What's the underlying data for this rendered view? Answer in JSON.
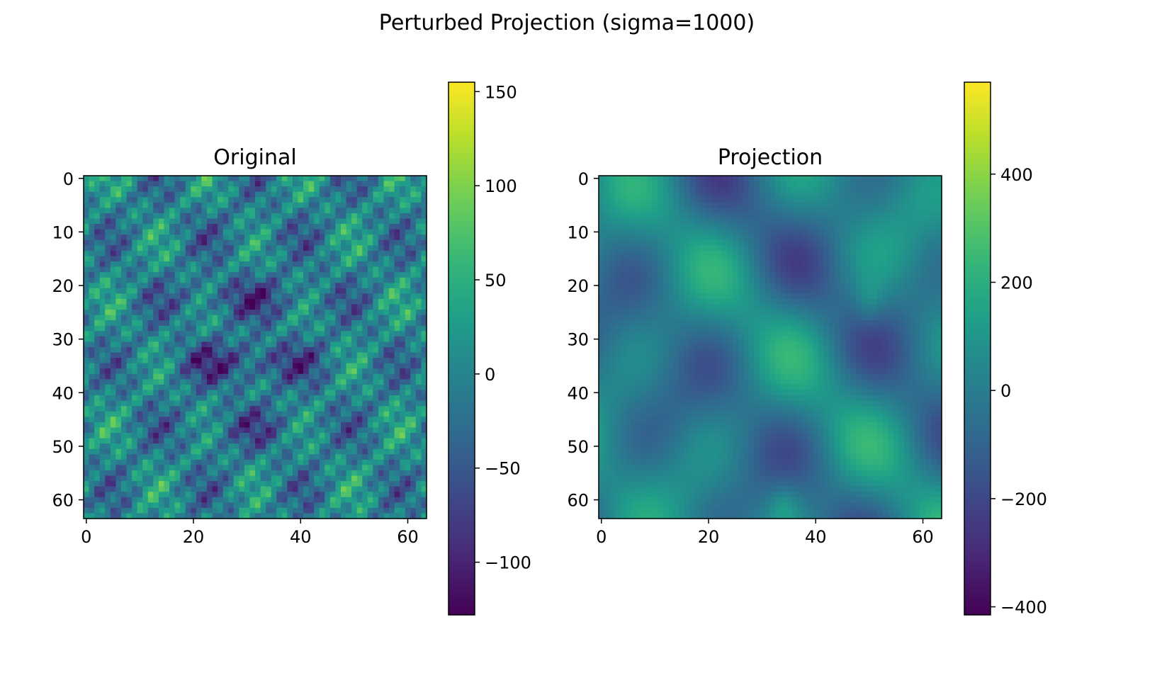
{
  "figure": {
    "title": "Perturbed Projection (sigma=1000)"
  },
  "chart_data": [
    {
      "type": "heatmap",
      "title": "Original",
      "image_size": [
        64,
        64
      ],
      "colormap": "viridis",
      "x_ticks": [
        0,
        20,
        40,
        60
      ],
      "y_ticks": [
        0,
        10,
        20,
        30,
        40,
        50,
        60
      ],
      "x_tick_labels": [
        "0",
        "20",
        "40",
        "60"
      ],
      "y_tick_labels": [
        "0",
        "10",
        "20",
        "30",
        "40",
        "50",
        "60"
      ],
      "colorbar": {
        "vmin": -128,
        "vmax": 155,
        "ticks": [
          150,
          100,
          50,
          0,
          -50,
          -100
        ],
        "tick_labels": [
          "150",
          "100",
          "50",
          "0",
          "−50",
          "−100"
        ]
      }
    },
    {
      "type": "heatmap",
      "title": "Projection",
      "image_size": [
        64,
        64
      ],
      "colormap": "viridis",
      "x_ticks": [
        0,
        20,
        40,
        60
      ],
      "y_ticks": [
        0,
        10,
        20,
        30,
        40,
        50,
        60
      ],
      "x_tick_labels": [
        "0",
        "20",
        "40",
        "60"
      ],
      "y_tick_labels": [
        "0",
        "10",
        "20",
        "30",
        "40",
        "50",
        "60"
      ],
      "colorbar": {
        "vmin": -415,
        "vmax": 570,
        "ticks": [
          400,
          200,
          0,
          -200,
          -400
        ],
        "tick_labels": [
          "400",
          "200",
          "0",
          "−200",
          "−400"
        ]
      }
    }
  ]
}
